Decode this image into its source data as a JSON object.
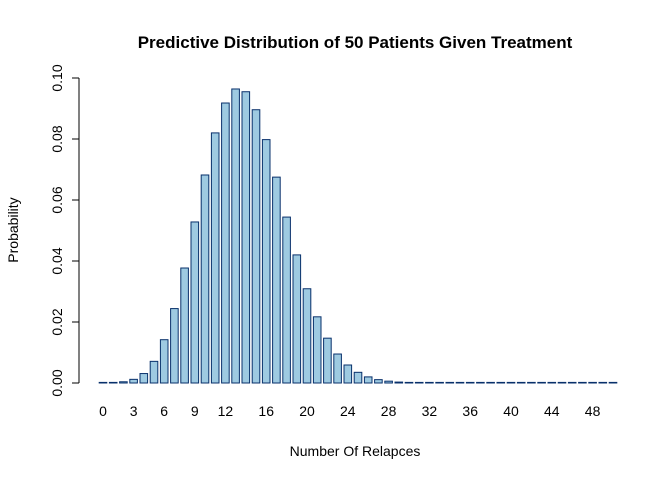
{
  "chart_data": {
    "type": "bar",
    "title": "Predictive Distribution of 50 Patients Given Treatment",
    "xlabel": "Number Of Relapces",
    "ylabel": "Probability",
    "ylim": [
      0,
      0.1
    ],
    "y_ticks": [
      "0.00",
      "0.02",
      "0.04",
      "0.06",
      "0.08",
      "0.10"
    ],
    "x_ticks": [
      "0",
      "3",
      "6",
      "9",
      "12",
      "16",
      "20",
      "24",
      "28",
      "32",
      "36",
      "40",
      "44",
      "48"
    ],
    "grid": false,
    "legend": "none",
    "bar_fill": "#9ecae1",
    "bar_stroke": "#08306b",
    "categories": [
      0,
      1,
      2,
      3,
      4,
      5,
      6,
      7,
      8,
      9,
      10,
      11,
      12,
      13,
      14,
      15,
      16,
      17,
      18,
      19,
      20,
      21,
      22,
      23,
      24,
      25,
      26,
      27,
      28,
      29,
      30,
      31,
      32,
      33,
      34,
      35,
      36,
      37,
      38,
      39,
      40,
      41,
      42,
      43,
      44,
      45,
      46,
      47,
      48,
      49,
      50
    ],
    "values": [
      0.0,
      0.0001,
      0.0004,
      0.0012,
      0.0031,
      0.0071,
      0.0142,
      0.0244,
      0.0377,
      0.0528,
      0.0682,
      0.082,
      0.0918,
      0.0964,
      0.0955,
      0.0896,
      0.0798,
      0.0675,
      0.0544,
      0.042,
      0.0309,
      0.0217,
      0.0147,
      0.0095,
      0.0059,
      0.0035,
      0.002,
      0.0011,
      0.0006,
      0.0003,
      0.0002,
      0.0001,
      0.0,
      0.0,
      0.0,
      0.0,
      0.0,
      0.0,
      0.0,
      0.0,
      0.0,
      0.0,
      0.0,
      0.0,
      0.0,
      0.0,
      0.0,
      0.0,
      0.0,
      0.0,
      0.0
    ]
  }
}
